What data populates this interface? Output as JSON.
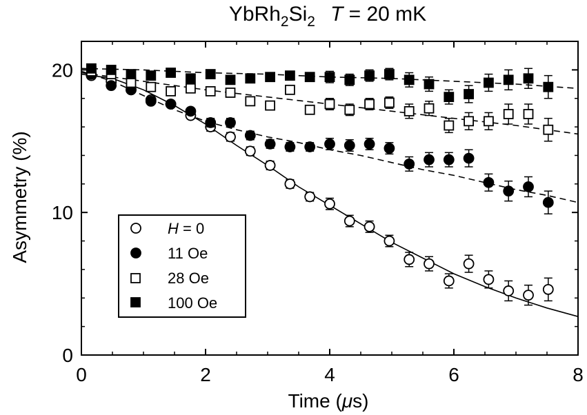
{
  "chart_data": {
    "type": "scatter",
    "title": {
      "material_base": "YbRh",
      "sub1": "2",
      "mid": "Si",
      "sub2": "2",
      "temp_var": "T",
      "temp_rest": " = 20 mK"
    },
    "xlabel": {
      "prefix": "Time  (",
      "mu": "μ",
      "suffix": "s)"
    },
    "ylabel": "Asymmetry  (%)",
    "xlim": [
      0,
      8
    ],
    "ylim": [
      0,
      22
    ],
    "xticks": [
      0,
      2,
      4,
      6,
      8
    ],
    "yticks": [
      0,
      10,
      20
    ],
    "x": [
      0.16,
      0.48,
      0.8,
      1.12,
      1.44,
      1.76,
      2.08,
      2.4,
      2.72,
      3.04,
      3.36,
      3.68,
      4.0,
      4.32,
      4.64,
      4.96,
      5.28,
      5.6,
      5.92,
      6.24,
      6.56,
      6.88,
      7.2,
      7.52
    ],
    "series": [
      {
        "name": "H = 0",
        "legend_var": "H",
        "legend_rest": " = 0",
        "marker": "open-circle",
        "values": [
          19.6,
          19.2,
          18.6,
          17.9,
          17.6,
          16.8,
          16.0,
          15.3,
          14.3,
          13.3,
          12.0,
          11.1,
          10.6,
          9.4,
          9.0,
          8.0,
          6.7,
          6.4,
          5.2,
          6.4,
          5.3,
          4.5,
          4.2,
          4.6
        ],
        "errors": [
          0.2,
          0.2,
          0.2,
          0.2,
          0.2,
          0.2,
          0.3,
          0.3,
          0.3,
          0.3,
          0.3,
          0.3,
          0.4,
          0.4,
          0.4,
          0.4,
          0.5,
          0.5,
          0.5,
          0.6,
          0.6,
          0.7,
          0.7,
          0.8
        ]
      },
      {
        "name": "11 Oe",
        "marker": "filled-circle",
        "values": [
          19.7,
          18.9,
          18.6,
          17.8,
          17.6,
          17.1,
          16.3,
          16.3,
          15.4,
          14.8,
          14.6,
          14.6,
          14.8,
          14.7,
          14.8,
          14.5,
          13.4,
          13.7,
          13.7,
          13.8,
          12.1,
          11.5,
          11.8,
          10.7
        ],
        "errors": [
          0.2,
          0.2,
          0.2,
          0.2,
          0.2,
          0.2,
          0.3,
          0.3,
          0.3,
          0.3,
          0.3,
          0.3,
          0.4,
          0.4,
          0.4,
          0.4,
          0.5,
          0.5,
          0.5,
          0.6,
          0.6,
          0.7,
          0.7,
          0.8
        ]
      },
      {
        "name": "28 Oe",
        "marker": "open-square",
        "values": [
          19.9,
          19.7,
          19.1,
          18.8,
          18.5,
          18.7,
          18.5,
          18.4,
          17.8,
          17.5,
          18.6,
          17.2,
          17.6,
          17.2,
          17.6,
          17.7,
          17.1,
          17.3,
          16.1,
          16.4,
          16.4,
          16.9,
          16.9,
          15.8
        ],
        "errors": [
          0.2,
          0.2,
          0.2,
          0.2,
          0.2,
          0.2,
          0.3,
          0.3,
          0.3,
          0.3,
          0.3,
          0.3,
          0.4,
          0.4,
          0.4,
          0.4,
          0.5,
          0.5,
          0.5,
          0.6,
          0.6,
          0.7,
          0.7,
          0.8
        ]
      },
      {
        "name": "100 Oe",
        "marker": "filled-square",
        "values": [
          20.1,
          20.0,
          19.7,
          19.6,
          19.8,
          19.4,
          19.7,
          19.3,
          19.4,
          19.5,
          19.6,
          19.5,
          19.5,
          19.3,
          19.6,
          19.7,
          19.3,
          19.0,
          18.1,
          18.3,
          19.1,
          19.3,
          19.4,
          18.8
        ],
        "errors": [
          0.2,
          0.2,
          0.2,
          0.2,
          0.2,
          0.2,
          0.3,
          0.3,
          0.3,
          0.3,
          0.3,
          0.3,
          0.4,
          0.4,
          0.4,
          0.4,
          0.5,
          0.5,
          0.5,
          0.6,
          0.6,
          0.7,
          0.7,
          0.8
        ]
      }
    ],
    "fit_curves": [
      {
        "series": "H = 0",
        "style": "solid",
        "x": [
          0,
          0.5,
          1,
          1.5,
          2,
          2.5,
          3,
          3.5,
          4,
          4.5,
          5,
          5.5,
          6,
          6.5,
          7,
          7.5,
          8
        ],
        "y": [
          19.7,
          19.4,
          18.6,
          17.5,
          16.2,
          14.7,
          13.3,
          11.8,
          10.5,
          9.2,
          7.9,
          6.8,
          5.7,
          4.8,
          4.0,
          3.3,
          2.7
        ]
      },
      {
        "series": "11 Oe",
        "style": "dashed",
        "x": [
          0,
          0.5,
          1,
          1.5,
          2,
          2.5,
          3,
          3.5,
          4,
          4.5,
          5,
          5.5,
          6,
          6.5,
          7,
          7.5,
          8
        ],
        "y": [
          19.9,
          19.2,
          18.2,
          17.2,
          16.4,
          15.8,
          15.3,
          14.9,
          14.4,
          14.0,
          13.5,
          13.0,
          12.6,
          12.1,
          11.6,
          11.2,
          10.7
        ]
      },
      {
        "series": "28 Oe",
        "style": "dashed",
        "x": [
          0,
          1,
          2,
          3,
          4,
          5,
          6,
          7,
          8
        ],
        "y": [
          19.8,
          19.2,
          18.6,
          18.1,
          17.6,
          17.1,
          16.6,
          16.1,
          15.5
        ]
      },
      {
        "series": "100 Oe",
        "style": "dashed",
        "x": [
          0,
          1,
          2,
          3,
          4,
          5,
          6,
          7,
          8
        ],
        "y": [
          20.1,
          20.0,
          19.8,
          19.7,
          19.5,
          19.4,
          19.2,
          19.0,
          18.7
        ]
      }
    ],
    "legend_position": "bottom-left",
    "grid": false
  }
}
